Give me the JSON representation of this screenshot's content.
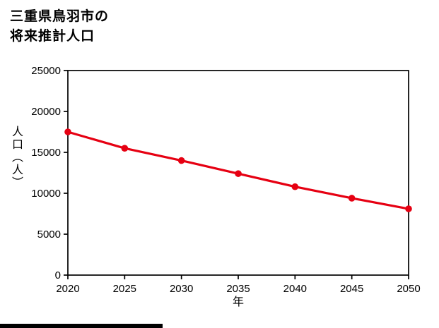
{
  "title": {
    "line1": "三重県鳥羽市の",
    "line2": "将来推計人口"
  },
  "colors": {
    "line": "#e60012",
    "axis": "#000000",
    "background": "#ffffff",
    "bottom_bar": "#000000"
  },
  "chart_data": {
    "type": "line",
    "title": "三重県鳥羽市の将来推計人口",
    "xlabel": "年",
    "ylabel": "人口（人）",
    "x": [
      2020,
      2025,
      2030,
      2035,
      2040,
      2045,
      2050
    ],
    "values": [
      17500,
      15500,
      14000,
      12400,
      10800,
      9400,
      8100
    ],
    "series_name": "将来推計人口",
    "xlim": [
      2020,
      2050
    ],
    "ylim": [
      0,
      25000
    ],
    "x_ticks": [
      2020,
      2025,
      2030,
      2035,
      2040,
      2045,
      2050
    ],
    "y_ticks": [
      0,
      5000,
      10000,
      15000,
      20000,
      25000
    ],
    "grid": false,
    "legend": "none",
    "line_color": "#e60012",
    "marker": "circle"
  }
}
